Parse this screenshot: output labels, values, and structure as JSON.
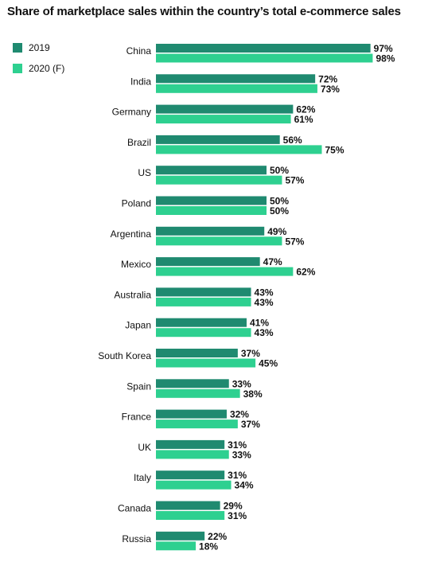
{
  "chart_data": {
    "type": "bar",
    "orientation": "horizontal",
    "title": "Share of marketplace sales within the country’s total e-commerce sales",
    "legend_position": "top-left",
    "grid": false,
    "xlim": [
      0,
      100
    ],
    "unit_suffix": "%",
    "categories": [
      "China",
      "India",
      "Germany",
      "Brazil",
      "US",
      "Poland",
      "Argentina",
      "Mexico",
      "Australia",
      "Japan",
      "South Korea",
      "Spain",
      "France",
      "UK",
      "Italy",
      "Canada",
      "Russia"
    ],
    "series": [
      {
        "name": "2019",
        "color": "#1f8a70",
        "values": [
          97,
          72,
          62,
          56,
          50,
          50,
          49,
          47,
          43,
          41,
          37,
          33,
          32,
          31,
          31,
          29,
          22
        ]
      },
      {
        "name": "2020 (F)",
        "color": "#2ed090",
        "values": [
          98,
          73,
          61,
          75,
          57,
          50,
          57,
          62,
          43,
          43,
          45,
          38,
          37,
          33,
          34,
          31,
          18
        ]
      }
    ]
  }
}
